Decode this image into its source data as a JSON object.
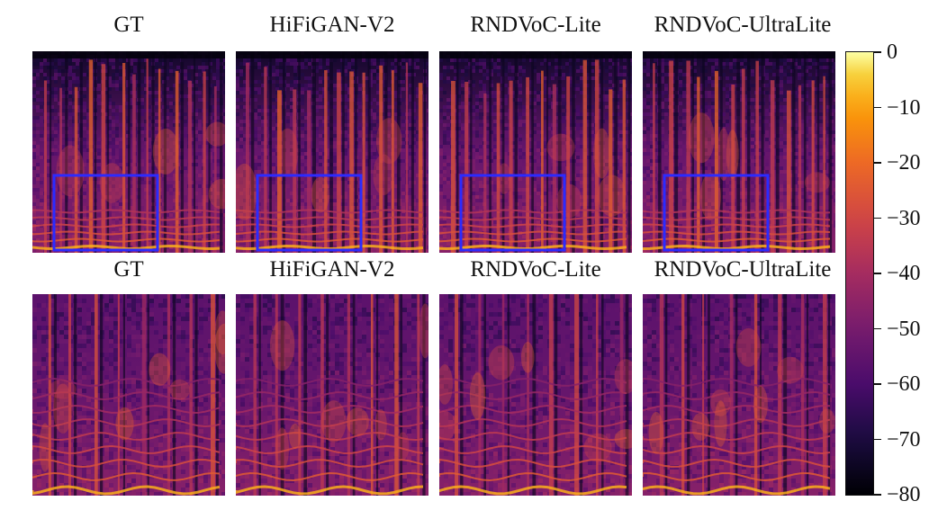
{
  "figure": {
    "top_titles": [
      "GT",
      "HiFiGAN-V2",
      "RNDVoC-Lite",
      "RNDVoC-UltraLite"
    ],
    "bottom_titles": [
      "GT",
      "HiFiGAN-V2",
      "RNDVoC-Lite",
      "RNDVoC-UltraLite"
    ],
    "highlight_box_color": "#2b2bff",
    "colormap": "inferno"
  },
  "colorbar": {
    "ticks": [
      "0",
      "−10",
      "−20",
      "−30",
      "−40",
      "−50",
      "−60",
      "−70",
      "−80"
    ],
    "min": -80,
    "max": 0
  }
}
